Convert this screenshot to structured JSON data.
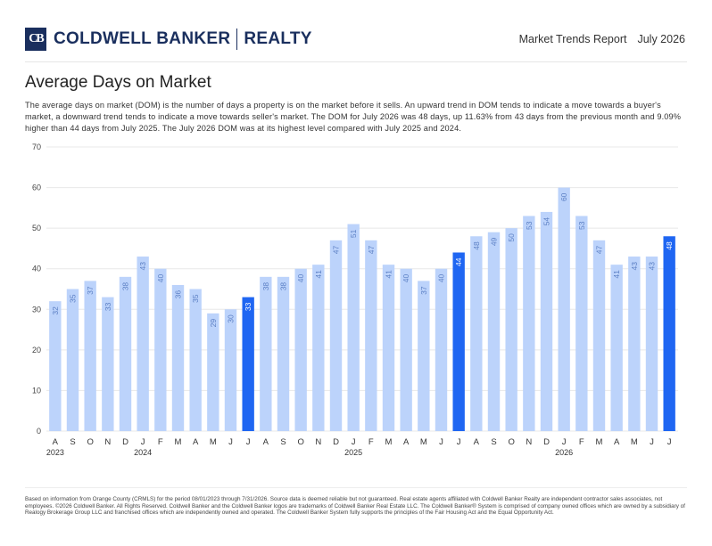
{
  "header": {
    "logo_mark": "CB",
    "brand": "COLDWELL BANKER",
    "brand_suffix": "REALTY",
    "report_title": "Market Trends Report",
    "report_period": "July 2026"
  },
  "title": "Average Days on Market",
  "description": "The average days on market (DOM) is the number of days a property is on the market before it sells. An upward trend in DOM tends to indicate a move towards a buyer's market, a downward trend tends to indicate a move towards seller's market. The DOM for July 2026 was 48 days, up 11.63% from 43 days from the previous month and 9.09% higher than 44 days from July 2025. The July 2026 DOM was at its highest level compared with July 2025 and 2024.",
  "footer": "Based on information from Orange County (CRMLS) for the period 08/01/2023 through 7/31/2026. Source data is deemed reliable but not guaranteed. Real estate agents affiliated with Coldwell Banker Realty are independent contractor sales associates, not employees. ©2026 Coldwell Banker. All Rights Reserved. Coldwell Banker and the Coldwell Banker logos are trademarks of Coldwell Banker Real Estate LLC. The Coldwell Banker® System is comprised of company owned offices which are owned by a subsidiary of Realogy Brokerage Group LLC and franchised offices which are independently owned and operated. The Coldwell Banker System fully supports the principles of the Fair Housing Act and the Equal Opportunity Act.",
  "colors": {
    "bar": "#bcd3fb",
    "highlight": "#1f66f2",
    "label_light": "#5b7fc4",
    "label_dark": "#ffffff",
    "grid": "#e8e8e8",
    "brand": "#1a2f5e"
  },
  "chart_data": {
    "type": "bar",
    "title": "",
    "xlabel": "",
    "ylabel": "",
    "ylim": [
      0,
      70
    ],
    "yticks": [
      0,
      10,
      20,
      30,
      40,
      50,
      60,
      70
    ],
    "grid": true,
    "categories": [
      "A",
      "S",
      "O",
      "N",
      "D",
      "J",
      "F",
      "M",
      "A",
      "M",
      "J",
      "J",
      "A",
      "S",
      "O",
      "N",
      "D",
      "J",
      "F",
      "M",
      "A",
      "M",
      "J",
      "J",
      "A",
      "S",
      "O",
      "N",
      "D",
      "J",
      "F",
      "M",
      "A",
      "M",
      "J",
      "J"
    ],
    "values": [
      32,
      35,
      37,
      33,
      38,
      43,
      40,
      36,
      35,
      29,
      30,
      33,
      38,
      38,
      40,
      41,
      47,
      51,
      47,
      41,
      40,
      37,
      40,
      44,
      48,
      49,
      50,
      53,
      54,
      60,
      53,
      47,
      41,
      43,
      43,
      48
    ],
    "highlight_indices": [
      11,
      23,
      35
    ],
    "year_labels": [
      {
        "label": "2023",
        "index": 0
      },
      {
        "label": "2024",
        "index": 5
      },
      {
        "label": "2025",
        "index": 17
      },
      {
        "label": "2026",
        "index": 29
      }
    ]
  }
}
